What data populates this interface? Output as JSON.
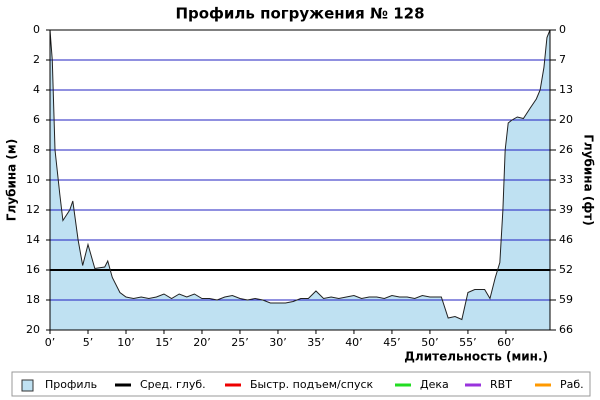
{
  "chart_data": {
    "type": "area",
    "title": "Профиль погружения № 128",
    "x_label": "Длительность (мин.)",
    "y_label": "Глубина (м)",
    "y2_label": "Глубина (фт)",
    "invert_y": true,
    "xlim": [
      0,
      65.8
    ],
    "xticks": [
      {
        "value": 0,
        "label": "0’"
      },
      {
        "value": 5,
        "label": "5’"
      },
      {
        "value": 10,
        "label": "10’"
      },
      {
        "value": 15,
        "label": "15’"
      },
      {
        "value": 20,
        "label": "20’"
      },
      {
        "value": 25,
        "label": "25’"
      },
      {
        "value": 30,
        "label": "30’"
      },
      {
        "value": 35,
        "label": "35’"
      },
      {
        "value": 40,
        "label": "40’"
      },
      {
        "value": 45,
        "label": "45’"
      },
      {
        "value": 50,
        "label": "50’"
      },
      {
        "value": 55,
        "label": "55’"
      },
      {
        "value": 60,
        "label": "60’"
      }
    ],
    "ylim": [
      0,
      20
    ],
    "yticks": [
      0,
      2,
      4,
      6,
      8,
      10,
      12,
      14,
      16,
      18,
      20
    ],
    "y2lim": [
      0,
      65.62
    ],
    "y2ticks": [
      {
        "value": 0,
        "label": "0"
      },
      {
        "value": 6.56,
        "label": "7"
      },
      {
        "value": 13.12,
        "label": "13"
      },
      {
        "value": 19.69,
        "label": "20"
      },
      {
        "value": 26.25,
        "label": "26"
      },
      {
        "value": 32.81,
        "label": "33"
      },
      {
        "value": 39.37,
        "label": "39"
      },
      {
        "value": 45.93,
        "label": "46"
      },
      {
        "value": 52.49,
        "label": "52"
      },
      {
        "value": 59.06,
        "label": "59"
      },
      {
        "value": 65.62,
        "label": "66"
      }
    ],
    "grid": true,
    "grid_color": "#2020c0",
    "series": [
      {
        "name": "Профиль",
        "color": "#bfe1f2",
        "line_color": "#222222",
        "x": [
          0,
          0.3,
          0.66,
          1.3,
          1.7,
          2.6,
          3,
          3.7,
          4.3,
          5,
          5.9,
          7.2,
          7.6,
          8.2,
          9.2,
          10,
          11,
          12,
          13,
          14,
          15,
          16,
          17,
          18,
          19,
          20,
          21,
          22,
          23,
          24,
          25,
          26,
          27,
          28,
          29,
          30,
          31,
          32,
          33,
          34,
          35,
          36,
          37,
          38,
          39,
          40,
          41,
          42,
          43,
          44,
          45,
          46,
          47,
          48,
          49,
          50,
          51.5,
          52.4,
          53.3,
          54.2,
          55,
          55.9,
          57.2,
          57.9,
          58.6,
          59.2,
          59.6,
          59.9,
          60.3,
          60.8,
          61.5,
          62.3,
          63.2,
          64,
          64.5,
          65,
          65.4,
          65.8
        ],
        "values": [
          0,
          2,
          8,
          11,
          12.7,
          12,
          11.4,
          14,
          15.7,
          14.3,
          15.9,
          15.8,
          15.4,
          16.5,
          17.5,
          17.8,
          17.9,
          17.8,
          17.9,
          17.8,
          17.6,
          17.9,
          17.6,
          17.8,
          17.6,
          17.9,
          17.9,
          18,
          17.8,
          17.7,
          17.9,
          18,
          17.9,
          18,
          18.2,
          18.2,
          18.2,
          18.1,
          17.9,
          17.9,
          17.4,
          17.9,
          17.8,
          17.9,
          17.8,
          17.7,
          17.9,
          17.8,
          17.8,
          17.9,
          17.7,
          17.8,
          17.8,
          17.9,
          17.7,
          17.8,
          17.8,
          19.2,
          19.1,
          19.3,
          17.5,
          17.3,
          17.3,
          17.9,
          16.5,
          15.5,
          12,
          8,
          6.2,
          6,
          5.8,
          5.9,
          5.2,
          4.6,
          4,
          2.5,
          0.5,
          0
        ]
      }
    ],
    "avg_depth": {
      "name": "Сред. глуб.",
      "color": "#000000",
      "value": 16
    },
    "other_legend_items": [
      {
        "name": "Быстр. подъем/спуск",
        "color": "#ee0000"
      },
      {
        "name": "Дека",
        "color": "#22dd22"
      },
      {
        "name": "RBT",
        "color": "#9933dd"
      },
      {
        "name": "Раб.",
        "color": "#ff9900"
      }
    ]
  }
}
